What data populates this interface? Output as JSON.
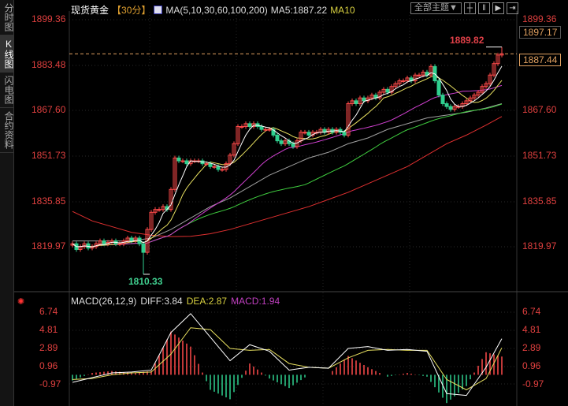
{
  "sidebar": {
    "tabs": [
      {
        "label": "分时图",
        "selected": false
      },
      {
        "label": "K线图",
        "selected": true
      },
      {
        "label": "闪电图",
        "selected": false
      },
      {
        "label": "合约资料",
        "selected": false
      }
    ]
  },
  "header": {
    "symbol": "现货黄金",
    "period": "【30分】",
    "ma_label": "MA(5,10,30,60,100,200)",
    "ma5": "MA5:1887.22",
    "ma10": "MA10",
    "theme_button": "全部主题▼"
  },
  "price_axis": {
    "labels": [
      "1899.36",
      "1883.48",
      "1867.60",
      "1851.73",
      "1835.85",
      "1819.97"
    ],
    "current": "1887.44",
    "box_top": "1897.17",
    "high_label": "1889.82",
    "low_label": "1810.33"
  },
  "macd_header": {
    "title": "MACD(26,12,9)",
    "diff": "DIFF:3.84",
    "dea": "DEA:2.87",
    "macd": "MACD:1.94"
  },
  "macd_axis": {
    "labels": [
      "6.74",
      "4.81",
      "2.89",
      "0.96",
      "-0.97"
    ]
  },
  "colors": {
    "up": "#ff4a4a",
    "down": "#2fd08f",
    "ma5": "#ffffff",
    "ma10": "#e8e060",
    "ma30": "#d040d0",
    "ma60": "#40d040",
    "ma100": "#a0a0a0",
    "ma200": "#e03030"
  },
  "chart_data": {
    "type": "candlestick",
    "period": "30分",
    "ylim": [
      1810.33,
      1899.36
    ],
    "close": [
      1821,
      1819,
      1820,
      1821,
      1819.5,
      1820,
      1821,
      1822,
      1821,
      1821.5,
      1822,
      1821,
      1821,
      1822,
      1823,
      1822,
      1823,
      1821,
      1818,
      1826,
      1832,
      1833,
      1833,
      1834,
      1833,
      1840,
      1851,
      1850,
      1850,
      1849,
      1850,
      1850,
      1850,
      1849,
      1849,
      1848,
      1848,
      1847,
      1847,
      1849,
      1852,
      1856,
      1862,
      1862,
      1863,
      1862,
      1863,
      1862,
      1861,
      1861,
      1861,
      1859,
      1857,
      1856,
      1857,
      1856,
      1855,
      1857,
      1860,
      1860,
      1859,
      1860,
      1860,
      1861,
      1860,
      1861,
      1860,
      1861,
      1860,
      1859,
      1870,
      1871,
      1870,
      1872,
      1871,
      1872,
      1873,
      1872,
      1874,
      1875,
      1874,
      1876,
      1877,
      1878,
      1878,
      1879,
      1878,
      1880,
      1880,
      1881,
      1880,
      1883,
      1878,
      1873,
      1870,
      1869,
      1868,
      1869,
      1869,
      1870,
      1871,
      1872,
      1873,
      1874,
      1876,
      1877,
      1880,
      1884,
      1887,
      1887.44
    ],
    "high": 1889.82,
    "low": 1810.33,
    "ma100_sparse": [
      1822,
      1822,
      1822,
      1822,
      1823,
      1826,
      1830,
      1834,
      1837,
      1841,
      1845,
      1848,
      1851,
      1853,
      1856,
      1858,
      1861,
      1863,
      1865,
      1866,
      1867,
      1868.5,
      1870
    ],
    "ma200_sparse": [
      1832.3,
      1829,
      1827,
      1825,
      1824,
      1823.5,
      1823.6,
      1824.5,
      1826,
      1828,
      1830,
      1832,
      1834,
      1836.5,
      1839,
      1842,
      1845,
      1848,
      1852,
      1856,
      1859,
      1862.5,
      1865.5
    ],
    "macd": {
      "ylim": [
        -0.97,
        6.74
      ],
      "diff_sparse": [
        -0.8,
        -0.3,
        0.2,
        0.3,
        0.5,
        4.5,
        6.5,
        4.0,
        1.5,
        3.2,
        2.5,
        0.5,
        0.8,
        0.7,
        2.8,
        3.0,
        2.6,
        2.7,
        2.5,
        -2.0,
        -2.2,
        0.8,
        3.84
      ],
      "dea_sparse": [
        -0.5,
        -0.4,
        0,
        0.2,
        0.3,
        2.2,
        5.0,
        4.8,
        2.8,
        2.6,
        2.7,
        1.2,
        0.8,
        0.7,
        1.8,
        2.6,
        2.7,
        2.6,
        2.6,
        -0.5,
        -1.6,
        -0.4,
        2.87
      ]
    }
  }
}
